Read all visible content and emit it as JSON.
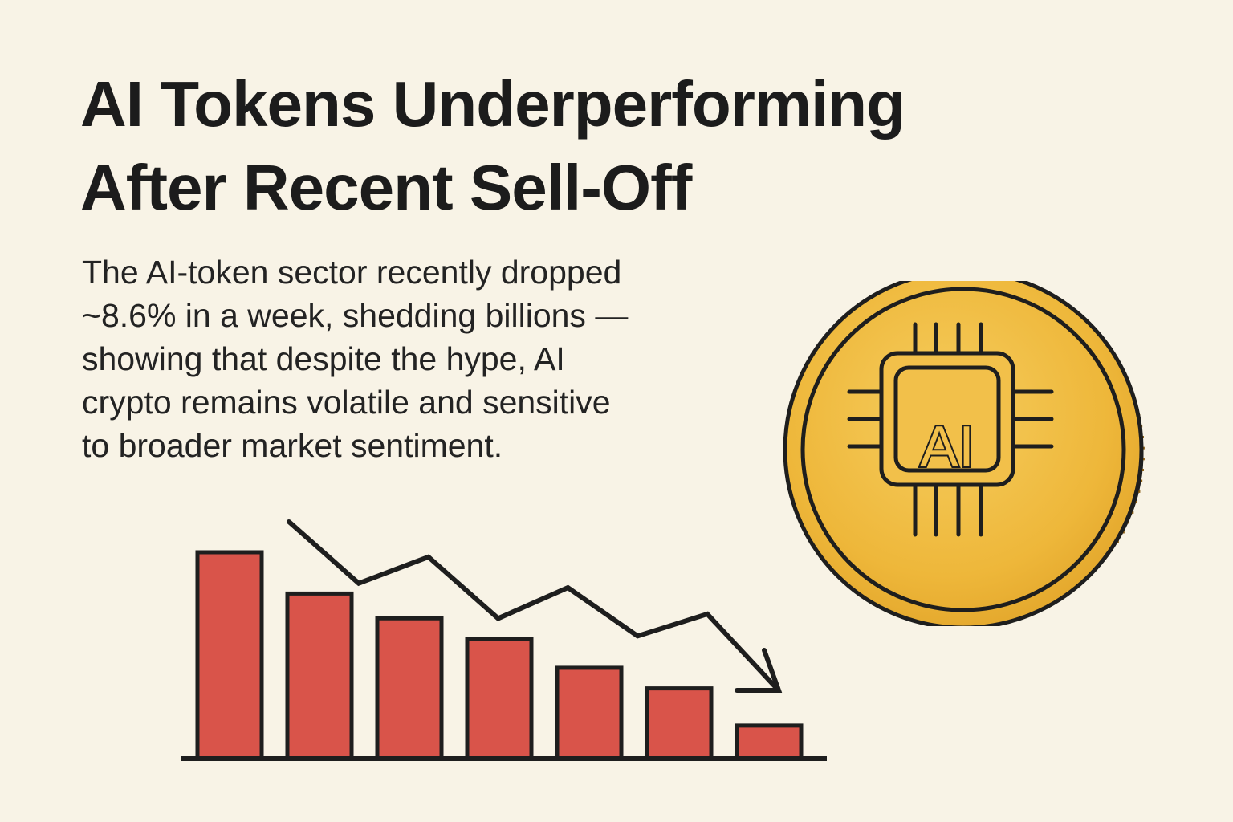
{
  "headline": {
    "line1": "AI Tokens Underperforming",
    "line2": "After Recent Sell-Off"
  },
  "body": {
    "lines": [
      "The AI-token sector recently dropped",
      "~8.6% in a week, shedding billions —",
      "showing that despite the hype, AI",
      "crypto remains volatile and sensitive",
      "to broader market sentiment."
    ]
  },
  "coin": {
    "label": "AI",
    "icon": "ai-chip-icon"
  },
  "colors": {
    "background": "#f8f3e6",
    "bar_fill": "#d9544a",
    "outline": "#1e1e1e",
    "coin_gold": "#efb83c"
  },
  "chart_data": {
    "type": "bar",
    "categories": [
      "",
      "",
      "",
      "",
      "",
      "",
      ""
    ],
    "values": [
      100,
      80,
      68,
      58,
      44,
      34,
      16
    ],
    "trend": "down",
    "trend_line": [
      100,
      72,
      84,
      56,
      70,
      48,
      58,
      24
    ],
    "title": "",
    "xlabel": "",
    "ylabel": ""
  }
}
